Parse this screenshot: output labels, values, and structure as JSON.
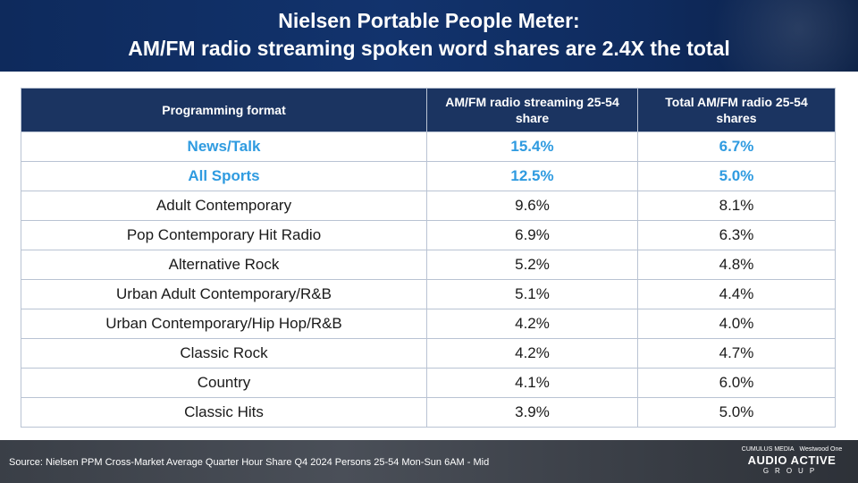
{
  "header": {
    "title_line1": "Nielsen Portable People Meter:",
    "title_line2": "AM/FM radio streaming spoken word shares are 2.4X the total"
  },
  "table": {
    "columns": [
      "Programming format",
      "AM/FM radio streaming 25-54 share",
      "Total AM/FM radio 25-54 shares"
    ],
    "rows": [
      {
        "format": "News/Talk",
        "streaming": "15.4%",
        "total": "6.7%",
        "highlight": true
      },
      {
        "format": "All Sports",
        "streaming": "12.5%",
        "total": "5.0%",
        "highlight": true
      },
      {
        "format": "Adult Contemporary",
        "streaming": "9.6%",
        "total": "8.1%",
        "highlight": false
      },
      {
        "format": "Pop Contemporary Hit Radio",
        "streaming": "6.9%",
        "total": "6.3%",
        "highlight": false
      },
      {
        "format": "Alternative Rock",
        "streaming": "5.2%",
        "total": "4.8%",
        "highlight": false
      },
      {
        "format": "Urban Adult Contemporary/R&B",
        "streaming": "5.1%",
        "total": "4.4%",
        "highlight": false
      },
      {
        "format": "Urban Contemporary/Hip Hop/R&B",
        "streaming": "4.2%",
        "total": "4.0%",
        "highlight": false
      },
      {
        "format": "Classic Rock",
        "streaming": "4.2%",
        "total": "4.7%",
        "highlight": false
      },
      {
        "format": "Country",
        "streaming": "4.1%",
        "total": "6.0%",
        "highlight": false
      },
      {
        "format": "Classic Hits",
        "streaming": "3.9%",
        "total": "5.0%",
        "highlight": false
      }
    ]
  },
  "footer": {
    "source": "Source: Nielsen PPM Cross-Market Average Quarter Hour Share Q4 2024 Persons 25-54 Mon-Sun 6AM - Mid",
    "logo_top_left": "CUMULUS MEDIA",
    "logo_top_right": "Westwood One",
    "logo_main": "AUDIO ACTIVE",
    "logo_sub": "GROUP"
  },
  "colors": {
    "header_bg": "#12336d",
    "table_header_bg": "#1b3461",
    "highlight_text": "#2f9be0"
  }
}
